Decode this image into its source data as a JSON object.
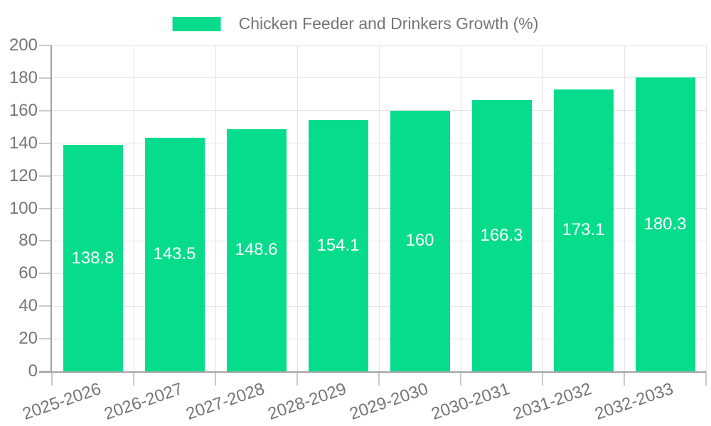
{
  "legend": {
    "label": "Chicken Feeder and Drinkers Growth (%)"
  },
  "chart_data": {
    "type": "bar",
    "title": "Chicken Feeder and Drinkers Growth (%)",
    "categories": [
      "2025-2026",
      "2026-2027",
      "2027-2028",
      "2028-2029",
      "2029-2030",
      "2030-2031",
      "2031-2032",
      "2032-2033"
    ],
    "values": [
      138.8,
      143.5,
      148.6,
      154.1,
      160,
      166.3,
      173.1,
      180.3
    ],
    "value_labels": [
      "138.8",
      "143.5",
      "148.6",
      "154.1",
      "160",
      "166.3",
      "173.1",
      "180.3"
    ],
    "xlabel": "",
    "ylabel": "",
    "ylim": [
      0,
      200
    ],
    "yticks": [
      0,
      20,
      40,
      60,
      80,
      100,
      120,
      140,
      160,
      180,
      200
    ],
    "grid": true,
    "legend_position": "top-center",
    "xtick_rotation_deg": -19,
    "value_label_position": "inside-center",
    "colors": {
      "bar": "#06dc8c",
      "grid": "#e4e4e4",
      "tick": "#c9c9c9",
      "axis": "#a3a3a3",
      "label_text": "#757575",
      "value_text": "#ffffff",
      "background": "#ffffff"
    }
  }
}
